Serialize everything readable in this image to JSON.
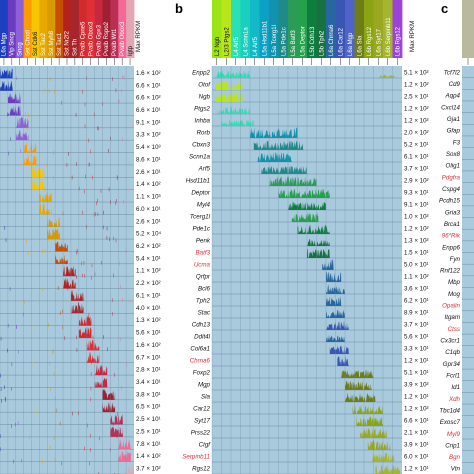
{
  "panels": [
    "b",
    "c"
  ],
  "chart_data": [
    {
      "type": "area",
      "panel": "a",
      "xlabel": "",
      "ylabel": "",
      "column_label": "Max RPKM",
      "clusters": [
        {
          "name": "L6a Mgp",
          "color": "#1e3fbf"
        },
        {
          "name": "Vip Sncg",
          "color": "#6c3cc0"
        },
        {
          "name": "Sncg",
          "color": "#8e5fd6"
        },
        {
          "name": "Sst Chodl",
          "color": "#ff9a00"
        },
        {
          "name": "Sst Cdk6",
          "color": "#f6c600"
        },
        {
          "name": "Sst Tac2",
          "color": "#e7a900"
        },
        {
          "name": "Sst Myh8",
          "color": "#d99a00"
        },
        {
          "name": "Sst Tac1",
          "color": "#c74f00"
        },
        {
          "name": "Sst Nr2f2",
          "color": "#b3221f"
        },
        {
          "name": "Sst Th",
          "color": "#a3272d"
        },
        {
          "name": "Pvalb Cpne5",
          "color": "#d42a2e"
        },
        {
          "name": "Pvalb Obox3",
          "color": "#e03036"
        },
        {
          "name": "Pvalb Gpx3",
          "color": "#c8283f"
        },
        {
          "name": "Pvalb Rspo2",
          "color": "#9e2133"
        },
        {
          "name": "Pvalb Wt1",
          "color": "#b93054"
        },
        {
          "name": "Pvalb Obox3",
          "color": "#f26a95"
        },
        {
          "name": "Igtp",
          "color": "#e3a6b5"
        }
      ],
      "max_rpkm": [
        "1.6 × 10²",
        "6.6 × 10¹",
        "6.6 × 10²",
        "6.6 × 10¹",
        "9.1 × 10¹",
        "3.3 × 10²",
        "5.4 × 10³",
        "8.6 × 10¹",
        "2.6 × 10¹",
        "1.4 × 10²",
        "1.1 × 10³",
        "6.0 × 10¹",
        "2.6 × 10¹",
        "5.2 × 10⁴",
        "6.2 × 10²",
        "5.4 × 10¹",
        "1.1 × 10²",
        "2.2 × 10²",
        "6.1 × 10¹",
        "4.0 × 10¹",
        "1.3 × 10²",
        "5.6 × 10¹",
        "1.6 × 10²",
        "6.7 × 10¹",
        "2.8 × 10¹",
        "3.4 × 10¹",
        "3.8 × 10¹",
        "6.5 × 10¹",
        "2.5 × 10¹",
        "2.5 × 10¹",
        "7.8 × 10¹",
        "1.4 × 10²",
        "3.7 × 10²"
      ]
    },
    {
      "type": "area",
      "panel": "b",
      "xlabel": "",
      "ylabel": "",
      "column_label": "Max RPKM",
      "clusters": [
        {
          "name": "L2 Ngb",
          "color": "#9be316"
        },
        {
          "name": "L2/3 Ptgs2",
          "color": "#b8e61b"
        },
        {
          "name": "L4 Arf5",
          "color": "#2be0b4"
        },
        {
          "name": "L4 Scnn1a",
          "color": "#18cfc0"
        },
        {
          "name": "L4 Arf5",
          "color": "#12b9c6"
        },
        {
          "name": "L5a Hsd11b1",
          "color": "#0ca0c4"
        },
        {
          "name": "L5a Tcerg1l",
          "color": "#1192ad"
        },
        {
          "name": "L5a Pde1c",
          "color": "#1f8a89"
        },
        {
          "name": "L5a Batf3",
          "color": "#2d9b58"
        },
        {
          "name": "L5a Deptor",
          "color": "#25a14c"
        },
        {
          "name": "L5b Cdh13",
          "color": "#0d7e3e"
        },
        {
          "name": "L5b Tph2",
          "color": "#16723e"
        },
        {
          "name": "L6a Chrna6",
          "color": "#27669e"
        },
        {
          "name": "L6a Car12",
          "color": "#3a56b4"
        },
        {
          "name": "L6a Mgp",
          "color": "#4f63c8"
        },
        {
          "name": "L6a Sla",
          "color": "#6e7d18"
        },
        {
          "name": "L6b Rgs12",
          "color": "#8aa513"
        },
        {
          "name": "L6a Syt17",
          "color": "#99a821"
        },
        {
          "name": "L6b Serpinb11",
          "color": "#a6b52f"
        },
        {
          "name": "L6b Rgs12",
          "color": "#9c43d8"
        }
      ],
      "genes": [
        {
          "name": "Enpp2",
          "red": false,
          "max": "5.1 × 10²",
          "peaks": [
            [
              0.02,
              0.2,
              0.7
            ],
            [
              0.88,
              0.96,
              0.3
            ]
          ]
        },
        {
          "name": "Otof",
          "red": false,
          "max": "1.2 × 10²",
          "peaks": [
            [
              0.02,
              0.16,
              0.9
            ]
          ]
        },
        {
          "name": "Ngb",
          "red": false,
          "max": "2.5 × 10¹",
          "peaks": [
            [
              0.02,
              0.16,
              0.85
            ]
          ]
        },
        {
          "name": "Ptgs2",
          "red": false,
          "max": "1.2 × 10²",
          "peaks": [
            [
              0.03,
              0.2,
              0.6
            ]
          ]
        },
        {
          "name": "Inhba",
          "red": false,
          "max": "1.2 × 10²",
          "peaks": [
            [
              0.05,
              0.22,
              0.5
            ]
          ]
        },
        {
          "name": "Rorb",
          "red": false,
          "max": "2.0 × 10²",
          "peaks": [
            [
              0.2,
              0.45,
              0.9
            ]
          ]
        },
        {
          "name": "Cbxn3",
          "red": false,
          "max": "5.2 × 10¹",
          "peaks": [
            [
              0.22,
              0.48,
              0.8
            ]
          ]
        },
        {
          "name": "Scnn1a",
          "red": false,
          "max": "6.1 × 10¹",
          "peaks": [
            [
              0.24,
              0.42,
              0.85
            ]
          ]
        },
        {
          "name": "Arf5",
          "red": false,
          "max": "3.7 × 10¹",
          "peaks": [
            [
              0.26,
              0.5,
              0.7
            ]
          ]
        },
        {
          "name": "Hsd11b1",
          "red": false,
          "max": "2.9 × 10²",
          "peaks": [
            [
              0.3,
              0.55,
              0.8
            ]
          ]
        },
        {
          "name": "Deptor",
          "red": false,
          "max": "9.3 × 10¹",
          "peaks": [
            [
              0.35,
              0.62,
              0.8
            ]
          ]
        },
        {
          "name": "Myl4",
          "red": false,
          "max": "9.1 × 10¹",
          "peaks": [
            [
              0.4,
              0.6,
              0.7
            ]
          ]
        },
        {
          "name": "Tcerg1l",
          "red": false,
          "max": "1.0 × 10²",
          "peaks": [
            [
              0.42,
              0.56,
              0.8
            ]
          ]
        },
        {
          "name": "Pde1c",
          "red": false,
          "max": "1.2 × 10²",
          "peaks": [
            [
              0.45,
              0.62,
              0.8
            ]
          ]
        },
        {
          "name": "Penk",
          "red": false,
          "max": "1.3 × 10²",
          "peaks": [
            [
              0.5,
              0.62,
              0.6
            ]
          ]
        },
        {
          "name": "Batf3",
          "red": true,
          "max": "1.5 × 10¹",
          "peaks": [
            [
              0.5,
              0.62,
              0.8
            ]
          ]
        },
        {
          "name": "Ucma",
          "red": true,
          "max": "5.0 × 10¹",
          "peaks": [
            [
              0.58,
              0.64,
              0.9
            ]
          ]
        },
        {
          "name": "Qrfpr",
          "red": false,
          "max": "1.1 × 10²",
          "peaks": [
            [
              0.6,
              0.68,
              0.9
            ]
          ]
        },
        {
          "name": "Bcl6",
          "red": false,
          "max": "3.6 × 10¹",
          "peaks": [
            [
              0.6,
              0.7,
              0.8
            ]
          ]
        },
        {
          "name": "Tph2",
          "red": false,
          "max": "6.2 × 10¹",
          "peaks": [
            [
              0.6,
              0.68,
              0.85
            ]
          ]
        },
        {
          "name": "Stac",
          "red": false,
          "max": "8.9 × 10¹",
          "peaks": [
            [
              0.6,
              0.7,
              0.7
            ]
          ]
        },
        {
          "name": "Cdh13",
          "red": false,
          "max": "3.7 × 10¹",
          "peaks": [
            [
              0.6,
              0.72,
              0.8
            ]
          ]
        },
        {
          "name": "Ddit4l",
          "red": false,
          "max": "5.6 × 10¹",
          "peaks": [
            [
              0.6,
              0.7,
              0.6
            ]
          ]
        },
        {
          "name": "Col6a1",
          "red": false,
          "max": "3.3 × 10¹",
          "peaks": [
            [
              0.62,
              0.72,
              0.7
            ]
          ]
        },
        {
          "name": "Chrna6",
          "red": true,
          "max": "1.2 × 10¹",
          "peaks": [
            [
              0.66,
              0.72,
              0.85
            ]
          ]
        },
        {
          "name": "Foxp2",
          "red": false,
          "max": "5.1 × 10¹",
          "peaks": [
            [
              0.68,
              0.85,
              0.7
            ]
          ]
        },
        {
          "name": "Mgp",
          "red": false,
          "max": "3.9 × 10²",
          "peaks": [
            [
              0.7,
              0.84,
              0.8
            ]
          ]
        },
        {
          "name": "Sla",
          "red": false,
          "max": "1.2 × 10¹",
          "peaks": [
            [
              0.7,
              0.86,
              0.8
            ]
          ]
        },
        {
          "name": "Car12",
          "red": false,
          "max": "1.2 × 10²",
          "peaks": [
            [
              0.74,
              0.9,
              0.8
            ]
          ]
        },
        {
          "name": "Syt17",
          "red": false,
          "max": "6.6 × 10¹",
          "peaks": [
            [
              0.76,
              0.9,
              0.9
            ]
          ]
        },
        {
          "name": "Prss22",
          "red": false,
          "max": "2.1 × 10¹",
          "peaks": [
            [
              0.78,
              0.92,
              0.85
            ]
          ]
        },
        {
          "name": "Ctgf",
          "red": false,
          "max": "3.9 × 10¹",
          "peaks": [
            [
              0.82,
              0.94,
              0.8
            ]
          ]
        },
        {
          "name": "Serpinb11",
          "red": true,
          "max": "6.0 × 10¹",
          "peaks": [
            [
              0.84,
              0.96,
              0.8
            ]
          ]
        },
        {
          "name": "Rgs12",
          "red": false,
          "max": "1.2 × 10¹",
          "peaks": [
            [
              0.86,
              0.99,
              0.85
            ]
          ]
        }
      ]
    },
    {
      "type": "area",
      "panel": "c",
      "xlabel": "",
      "ylabel": "",
      "genes": [
        {
          "name": "Tcf7l2",
          "red": false
        },
        {
          "name": "Cd9",
          "red": false
        },
        {
          "name": "Aqp4",
          "red": false
        },
        {
          "name": "Cxcl14",
          "red": false
        },
        {
          "name": "Gja1",
          "red": false
        },
        {
          "name": "Gfap",
          "red": false
        },
        {
          "name": "F3",
          "red": false
        },
        {
          "name": "Sox8",
          "red": false
        },
        {
          "name": "Olig1",
          "red": false
        },
        {
          "name": "Pdgfra",
          "red": true
        },
        {
          "name": "Cspg4",
          "red": false
        },
        {
          "name": "Pcdh15",
          "red": false
        },
        {
          "name": "Gria3",
          "red": false
        },
        {
          "name": "Brca1",
          "red": false
        },
        {
          "name": "96*Rik",
          "red": true
        },
        {
          "name": "Enpp6",
          "red": false
        },
        {
          "name": "Fyn",
          "red": false
        },
        {
          "name": "Rnf122",
          "red": false
        },
        {
          "name": "Mbp",
          "red": false
        },
        {
          "name": "Mog",
          "red": false
        },
        {
          "name": "Opalin",
          "red": true
        },
        {
          "name": "Itgam",
          "red": false
        },
        {
          "name": "Ctss",
          "red": true
        },
        {
          "name": "Cx3cr1",
          "red": false
        },
        {
          "name": "C1qb",
          "red": false
        },
        {
          "name": "Gpr34",
          "red": false
        },
        {
          "name": "Fcrl1",
          "red": false
        },
        {
          "name": "Id1",
          "red": false
        },
        {
          "name": "Xdh",
          "red": true
        },
        {
          "name": "Tbc1d4",
          "red": false
        },
        {
          "name": "Exosc7",
          "red": false
        },
        {
          "name": "Myl9",
          "red": true
        },
        {
          "name": "Crip1",
          "red": false
        },
        {
          "name": "Bgn",
          "red": true
        },
        {
          "name": "Vtn",
          "red": false
        }
      ]
    }
  ]
}
